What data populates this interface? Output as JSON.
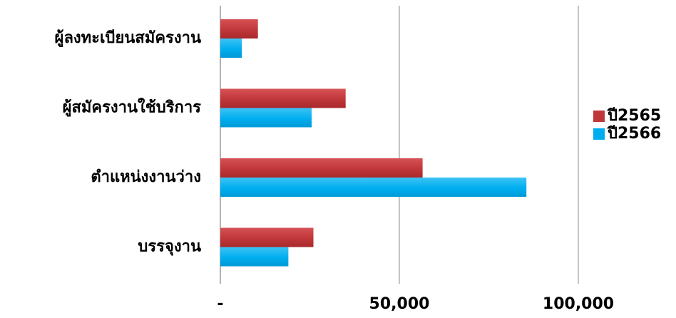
{
  "chart_data": {
    "type": "bar",
    "orientation": "horizontal",
    "categories": [
      "ผู้ลงทะเบียนสมัครงาน",
      "ผู้สมัครงานใช้บริการ",
      "ตำแหน่งงานว่าง",
      "บรรจุงาน"
    ],
    "series": [
      {
        "name": "ปี2565",
        "color": "#c0373a",
        "values": [
          10500,
          35000,
          56500,
          26000
        ]
      },
      {
        "name": "ปี2566",
        "color": "#00aeef",
        "values": [
          6000,
          25500,
          85500,
          19000
        ]
      }
    ],
    "x_ticks": [
      {
        "value": 0,
        "label": "-"
      },
      {
        "value": 50000,
        "label": "50,000"
      },
      {
        "value": 100000,
        "label": "100,000"
      }
    ],
    "xlim": [
      0,
      100000
    ],
    "grid": true,
    "legend_position": "right",
    "title": "",
    "xlabel": "",
    "ylabel": ""
  }
}
